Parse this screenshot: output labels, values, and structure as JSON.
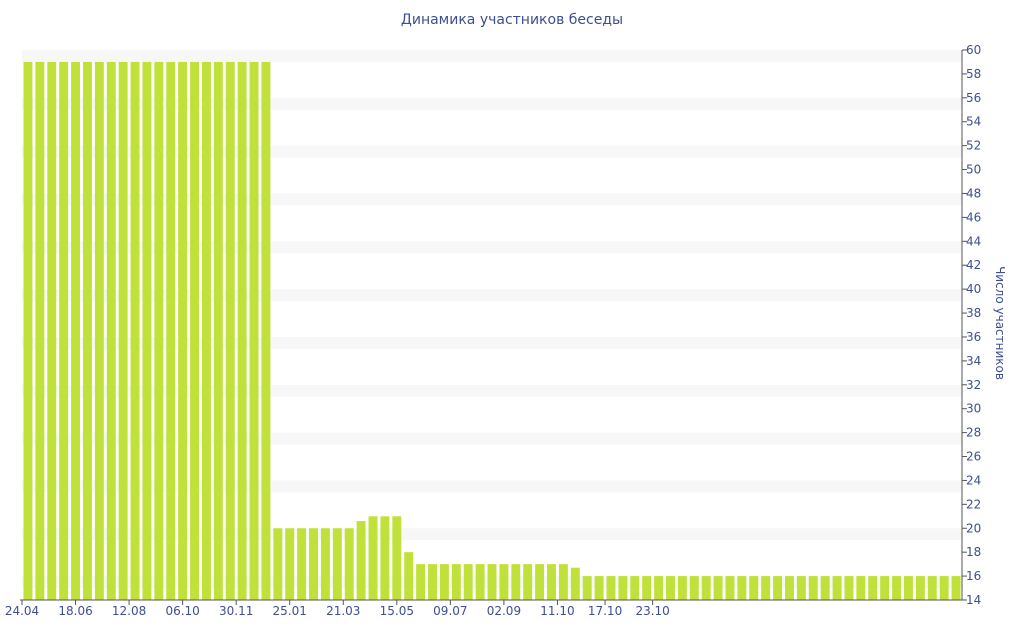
{
  "chart_data": {
    "type": "bar",
    "title": "Динамика участников беседы",
    "xlabel": "",
    "ylabel": "Число участников",
    "ylim": [
      14,
      60
    ],
    "y_ticks": [
      14,
      16,
      18,
      20,
      22,
      24,
      26,
      28,
      30,
      32,
      34,
      36,
      38,
      40,
      42,
      44,
      46,
      48,
      50,
      52,
      54,
      56,
      58,
      60
    ],
    "y_axis_side": "right",
    "x_tick_labels": [
      "24.04",
      "18.06",
      "12.08",
      "06.10",
      "30.11",
      "25.01",
      "21.03",
      "15.05",
      "09.07",
      "02.09",
      "11.10",
      "17.10",
      "23.10"
    ],
    "x_tick_label_positions": [
      0,
      4.5,
      9,
      13.5,
      18,
      22.5,
      27,
      31.5,
      36,
      40.5,
      45,
      49,
      53
    ],
    "values": [
      59,
      59,
      59,
      59,
      59,
      59,
      59,
      59,
      59,
      59,
      59,
      59,
      59,
      59,
      59,
      59,
      59,
      59,
      59,
      59,
      59,
      20,
      20,
      20,
      20,
      20,
      20,
      20,
      20.6,
      21,
      21,
      21,
      18,
      17,
      17,
      17,
      17,
      17,
      17,
      17,
      17,
      17,
      17,
      17,
      17,
      17,
      16.7,
      16,
      16,
      16,
      16,
      16,
      16,
      16,
      16,
      16,
      16,
      16,
      16,
      16,
      16,
      16,
      16,
      16,
      16,
      16,
      16,
      16,
      16,
      16,
      16,
      16,
      16,
      16,
      16,
      16,
      16,
      16,
      16
    ],
    "bar_color": "#c0e03a",
    "grid": "alternating horizontal bands",
    "legend": "none",
    "colors": {
      "title": "#3d4f91",
      "axis_text": "#3d4f91",
      "band": "#f7f7f7",
      "axis_line": "#555555"
    }
  }
}
